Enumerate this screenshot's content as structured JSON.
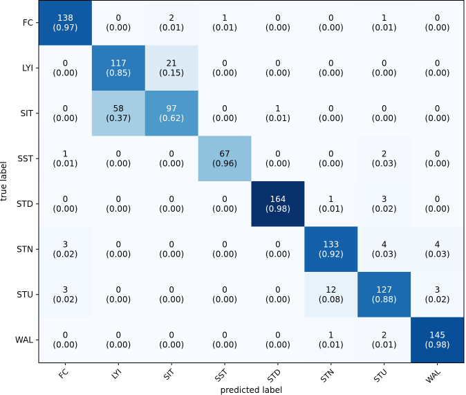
{
  "chart_data": {
    "type": "heatmap",
    "xlabel": "predicted label",
    "ylabel": "true label",
    "x_categories": [
      "FC",
      "LYI",
      "SIT",
      "SST",
      "STD",
      "STN",
      "STU",
      "WAL"
    ],
    "y_categories": [
      "FC",
      "LYI",
      "SIT",
      "SST",
      "STD",
      "STN",
      "STU",
      "WAL"
    ],
    "counts": [
      [
        138,
        0,
        2,
        1,
        0,
        0,
        1,
        0
      ],
      [
        0,
        117,
        21,
        0,
        0,
        0,
        0,
        0
      ],
      [
        0,
        58,
        97,
        0,
        1,
        0,
        0,
        0
      ],
      [
        1,
        0,
        0,
        67,
        0,
        0,
        2,
        0
      ],
      [
        0,
        0,
        0,
        0,
        164,
        1,
        3,
        0
      ],
      [
        3,
        0,
        0,
        0,
        0,
        133,
        4,
        4
      ],
      [
        3,
        0,
        0,
        0,
        0,
        12,
        127,
        3
      ],
      [
        0,
        0,
        0,
        0,
        0,
        1,
        2,
        145
      ]
    ],
    "proportions": [
      [
        "(0.97)",
        "(0.00)",
        "(0.01)",
        "(0.01)",
        "(0.00)",
        "(0.00)",
        "(0.01)",
        "(0.00)"
      ],
      [
        "(0.00)",
        "(0.85)",
        "(0.15)",
        "(0.00)",
        "(0.00)",
        "(0.00)",
        "(0.00)",
        "(0.00)"
      ],
      [
        "(0.00)",
        "(0.37)",
        "(0.62)",
        "(0.00)",
        "(0.01)",
        "(0.00)",
        "(0.00)",
        "(0.00)"
      ],
      [
        "(0.01)",
        "(0.00)",
        "(0.00)",
        "(0.96)",
        "(0.00)",
        "(0.00)",
        "(0.03)",
        "(0.00)"
      ],
      [
        "(0.00)",
        "(0.00)",
        "(0.00)",
        "(0.00)",
        "(0.98)",
        "(0.01)",
        "(0.02)",
        "(0.00)"
      ],
      [
        "(0.02)",
        "(0.00)",
        "(0.00)",
        "(0.00)",
        "(0.00)",
        "(0.92)",
        "(0.03)",
        "(0.03)"
      ],
      [
        "(0.02)",
        "(0.00)",
        "(0.00)",
        "(0.00)",
        "(0.00)",
        "(0.08)",
        "(0.88)",
        "(0.02)"
      ],
      [
        "(0.00)",
        "(0.00)",
        "(0.00)",
        "(0.00)",
        "(0.00)",
        "(0.01)",
        "(0.01)",
        "(0.98)"
      ]
    ],
    "colormap": "Blues",
    "colors": {
      "low": "#f7fbff",
      "high": "#08306b",
      "text_dark": "#000000",
      "text_light": "#ffffff"
    }
  }
}
